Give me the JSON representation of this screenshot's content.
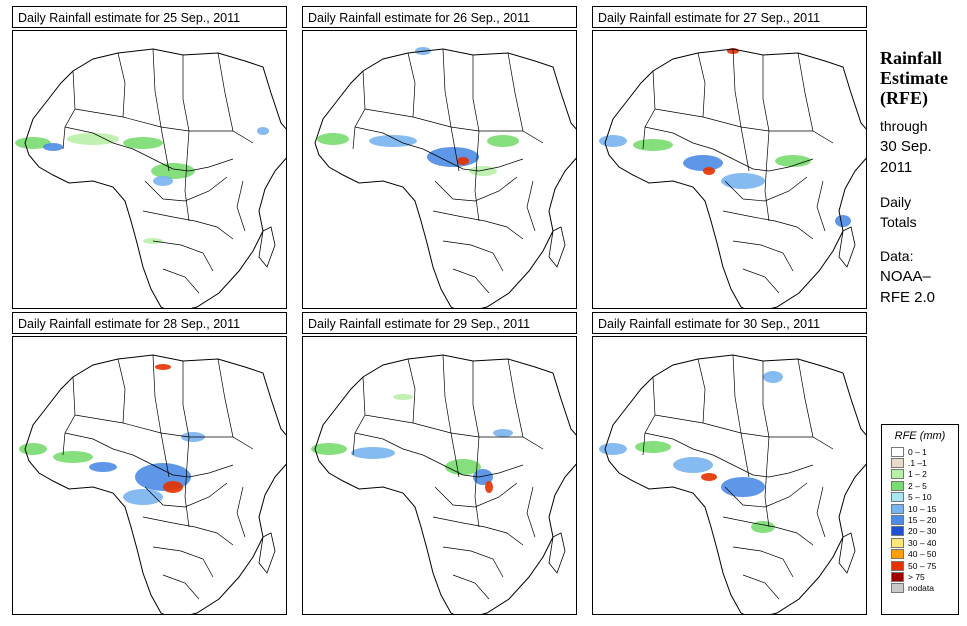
{
  "panels": [
    {
      "title": "Daily Rainfall estimate for  25 Sep., 2011"
    },
    {
      "title": "Daily Rainfall estimate for  26 Sep., 2011"
    },
    {
      "title": "Daily Rainfall estimate for  27 Sep., 2011"
    },
    {
      "title": "Daily Rainfall estimate for  28 Sep., 2011"
    },
    {
      "title": "Daily Rainfall estimate for  29 Sep., 2011"
    },
    {
      "title": "Daily Rainfall estimate for  30 Sep., 2011"
    }
  ],
  "side": {
    "heading1": "Rainfall",
    "heading2": "Estimate",
    "heading3": "(RFE)",
    "through": "through",
    "date1": "30 Sep.",
    "date2": "2011",
    "daily": "Daily",
    "totals": "Totals",
    "data": "Data:",
    "source1": "NOAA–",
    "source2": "RFE 2.0"
  },
  "legend": {
    "title": "RFE (mm)",
    "items": [
      {
        "label": "0 – 1",
        "color": "#ffffff"
      },
      {
        "label": ".1 –1",
        "color": "#e8dcc8"
      },
      {
        "label": "1 – 2",
        "color": "#b9f0a8"
      },
      {
        "label": "2 – 5",
        "color": "#78dc6e"
      },
      {
        "label": "5 – 10",
        "color": "#a9e6f2"
      },
      {
        "label": "10 – 15",
        "color": "#78b4f0"
      },
      {
        "label": "15 – 20",
        "color": "#4c8ce6"
      },
      {
        "label": "20 – 30",
        "color": "#1e50d2"
      },
      {
        "label": "30 – 40",
        "color": "#ffe678"
      },
      {
        "label": "40 – 50",
        "color": "#ffa000"
      },
      {
        "label": "50 – 75",
        "color": "#e63200"
      },
      {
        "label": "> 75",
        "color": "#a00000"
      },
      {
        "label": "nodata",
        "color": "#c8c8c8"
      }
    ]
  }
}
